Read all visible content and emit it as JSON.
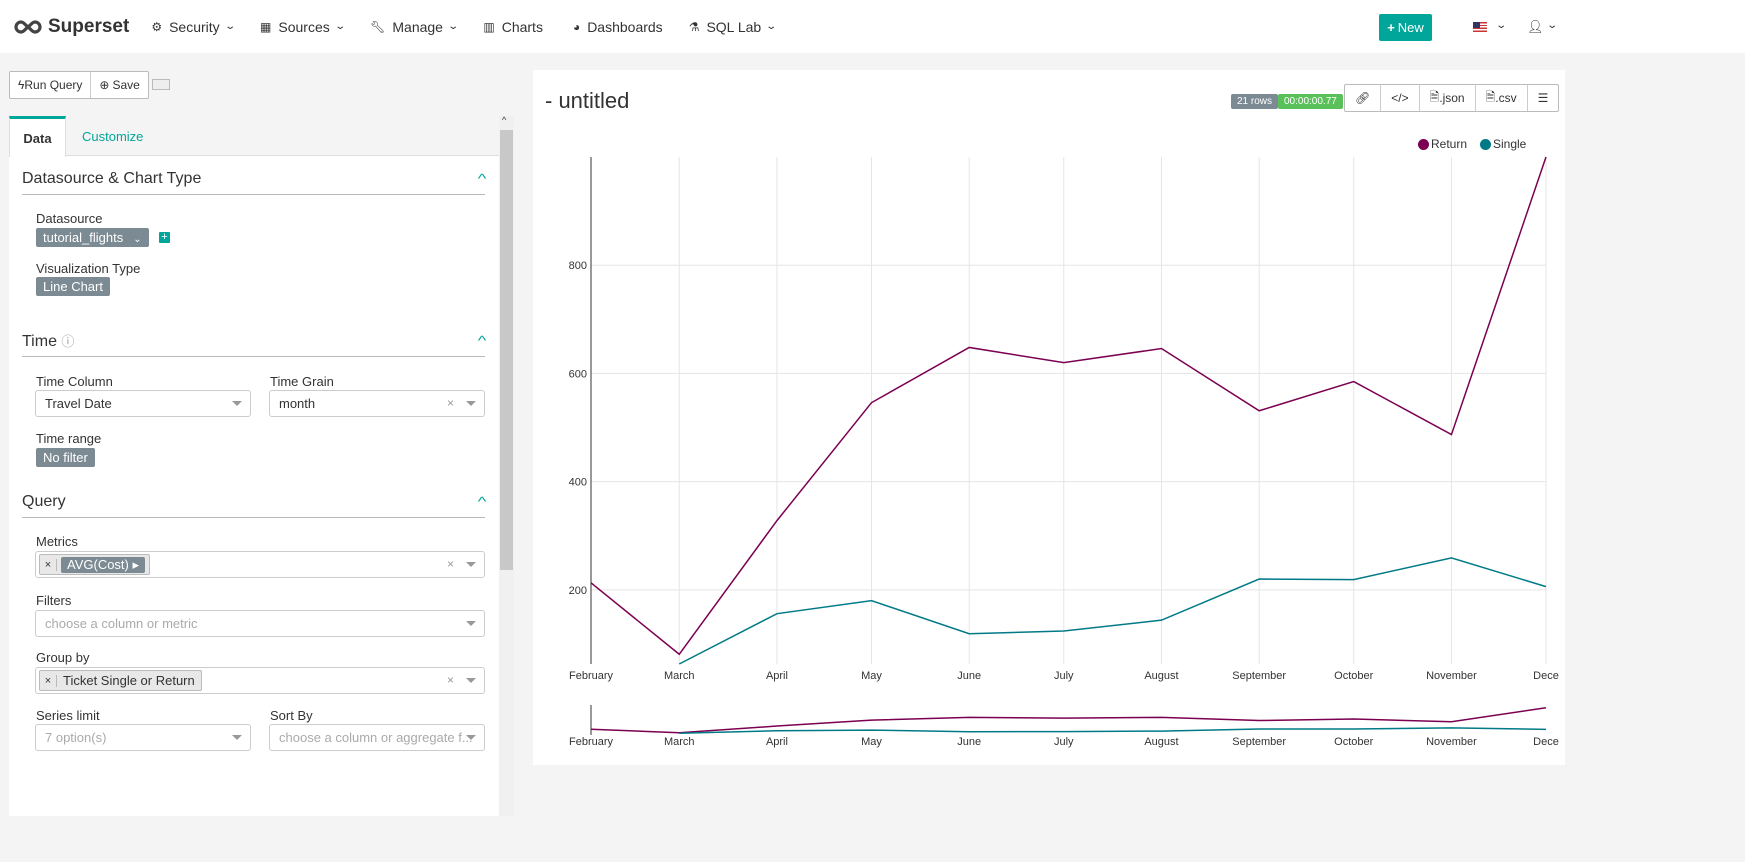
{
  "nav": {
    "brand": "Superset",
    "items": [
      {
        "label": "Security",
        "icon": "gears-icon",
        "dropdown": true
      },
      {
        "label": "Sources",
        "icon": "table-icon",
        "dropdown": true
      },
      {
        "label": "Manage",
        "icon": "wrench-icon",
        "dropdown": true
      },
      {
        "label": "Charts",
        "icon": "bar-chart-icon",
        "dropdown": false
      },
      {
        "label": "Dashboards",
        "icon": "dashboard-icon",
        "dropdown": false
      },
      {
        "label": "SQL Lab",
        "icon": "flask-icon",
        "dropdown": true
      }
    ],
    "new_label": "New"
  },
  "toolbar": {
    "run_label": "Run Query",
    "save_label": "Save"
  },
  "tabs": {
    "data": "Data",
    "customize": "Customize"
  },
  "sections": {
    "datasource": {
      "title": "Datasource & Chart Type",
      "datasource_label": "Datasource",
      "datasource_value": "tutorial_flights",
      "viz_label": "Visualization Type",
      "viz_value": "Line Chart"
    },
    "time": {
      "title": "Time",
      "column_label": "Time Column",
      "column_value": "Travel Date",
      "grain_label": "Time Grain",
      "grain_value": "month",
      "range_label": "Time range",
      "range_value": "No filter"
    },
    "query": {
      "title": "Query",
      "metrics_label": "Metrics",
      "metric_value": "AVG(Cost)",
      "filters_label": "Filters",
      "filters_placeholder": "choose a column or metric",
      "groupby_label": "Group by",
      "groupby_value": "Ticket Single or Return",
      "series_limit_label": "Series limit",
      "series_limit_placeholder": "7 option(s)",
      "sort_by_label": "Sort By",
      "sort_by_placeholder": "choose a column or aggregate f..."
    }
  },
  "chart_header": {
    "title": "- untitled",
    "rows": "21 rows",
    "duration": "00:00:00.77",
    "json_label": ".json",
    "csv_label": ".csv"
  },
  "chart_data": {
    "type": "line",
    "categories": [
      "February",
      "March",
      "April",
      "May",
      "June",
      "July",
      "August",
      "September",
      "October",
      "November",
      "December"
    ],
    "x_tick_labels": [
      "February",
      "March",
      "April",
      "May",
      "June",
      "July",
      "August",
      "September",
      "October",
      "November",
      "Dece"
    ],
    "y_ticks": [
      200,
      400,
      600,
      800
    ],
    "ylim": [
      63,
      1000
    ],
    "grid": true,
    "legend": "top-right",
    "series": [
      {
        "name": "Return",
        "color": "#7b0051",
        "values": [
          213,
          81,
          328,
          546,
          648,
          620,
          646,
          531,
          585,
          487,
          1000
        ]
      },
      {
        "name": "Single",
        "color": "#007a87",
        "values": [
          null,
          63,
          156,
          180,
          119,
          124,
          144,
          220,
          219,
          259,
          206
        ]
      }
    ]
  }
}
